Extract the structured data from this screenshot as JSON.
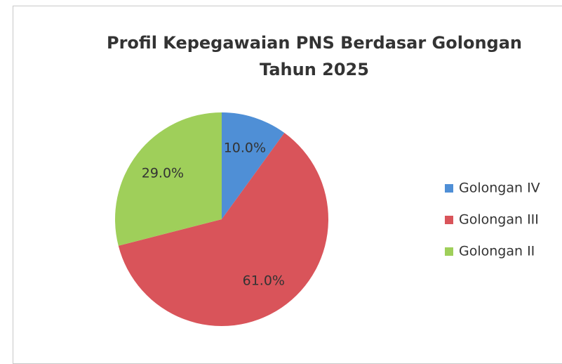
{
  "chart_data": {
    "type": "pie",
    "title": "Profil Kepegawaian PNS Berdasar Golongan Tahun 2025",
    "categories": [
      "Golongan IV",
      "Golongan III",
      "Golongan II"
    ],
    "values": [
      10,
      61,
      29
    ],
    "value_labels": [
      "10.0%",
      "61.0%",
      "29.0%"
    ],
    "colors": [
      "#4f8fd6",
      "#d9545a",
      "#9fcf5a"
    ],
    "legend": "right"
  }
}
